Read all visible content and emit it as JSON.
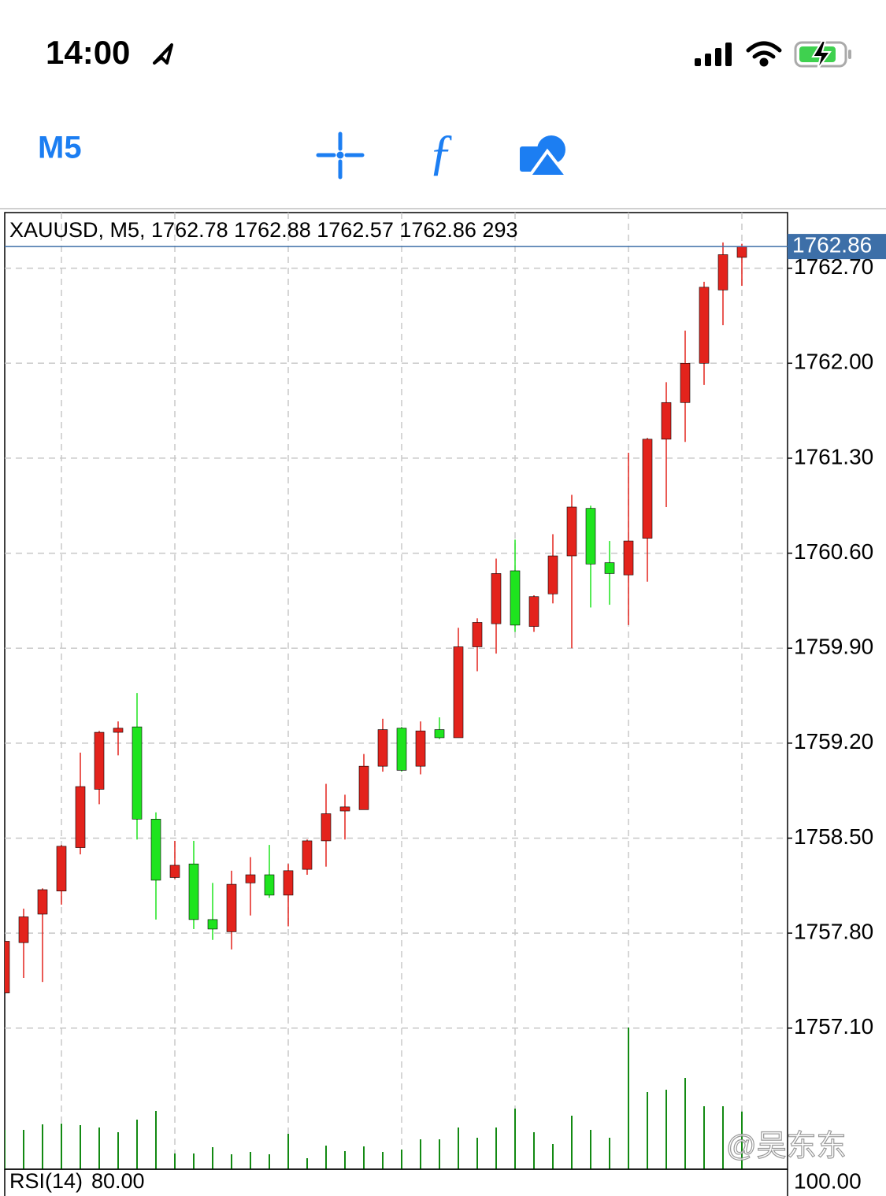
{
  "status_bar": {
    "time": "14:00"
  },
  "toolbar": {
    "timeframe": "M5"
  },
  "chart_data": {
    "type": "candlestick",
    "header": "XAUUSD, M5, 1762.78 1762.88 1762.57 1762.86 293",
    "open": [
      1757.36,
      1757.73,
      1757.94,
      1758.11,
      1758.43,
      1758.86,
      1759.28,
      1759.32,
      1758.64,
      1758.21,
      1758.31,
      1757.9,
      1757.81,
      1758.17,
      1758.23,
      1758.08,
      1758.27,
      1758.48,
      1758.7,
      1758.71,
      1759.03,
      1759.31,
      1759.03,
      1759.3,
      1759.24,
      1759.91,
      1760.08,
      1760.47,
      1760.06,
      1760.3,
      1760.58,
      1760.93,
      1760.53,
      1760.44,
      1760.71,
      1761.44,
      1761.71,
      1762.0,
      1762.54,
      1762.78
    ],
    "high": [
      1757.74,
      1757.98,
      1758.13,
      1758.45,
      1759.13,
      1759.29,
      1759.36,
      1759.57,
      1758.69,
      1758.48,
      1758.48,
      1758.17,
      1758.26,
      1758.36,
      1758.45,
      1758.31,
      1758.49,
      1758.9,
      1758.82,
      1759.12,
      1759.38,
      1759.32,
      1759.36,
      1759.39,
      1760.05,
      1760.12,
      1760.56,
      1760.7,
      1760.29,
      1760.74,
      1761.03,
      1760.95,
      1760.69,
      1761.34,
      1761.45,
      1761.86,
      1762.24,
      1762.6,
      1762.89,
      1762.88
    ],
    "low": [
      1757.36,
      1757.47,
      1757.44,
      1758.01,
      1758.38,
      1758.75,
      1759.11,
      1758.49,
      1757.9,
      1758.2,
      1757.83,
      1757.75,
      1757.68,
      1757.93,
      1758.06,
      1757.85,
      1758.23,
      1758.29,
      1758.49,
      1758.71,
      1758.99,
      1758.99,
      1758.97,
      1759.23,
      1759.24,
      1759.73,
      1759.86,
      1760.02,
      1760.02,
      1760.23,
      1759.9,
      1760.2,
      1760.22,
      1760.07,
      1760.39,
      1760.94,
      1761.42,
      1761.84,
      1762.28,
      1762.57
    ],
    "close": [
      1757.74,
      1757.92,
      1758.12,
      1758.44,
      1758.88,
      1759.28,
      1759.31,
      1758.64,
      1758.19,
      1758.3,
      1757.9,
      1757.83,
      1758.16,
      1758.23,
      1758.08,
      1758.26,
      1758.48,
      1758.68,
      1758.73,
      1759.03,
      1759.3,
      1759.0,
      1759.29,
      1759.24,
      1759.91,
      1760.09,
      1760.45,
      1760.07,
      1760.28,
      1760.58,
      1760.94,
      1760.52,
      1760.45,
      1760.69,
      1761.44,
      1761.71,
      1762.0,
      1762.56,
      1762.8,
      1762.86
    ],
    "volume": [
      200,
      200,
      228,
      232,
      224,
      212,
      188,
      252,
      296,
      80,
      80,
      112,
      76,
      88,
      76,
      180,
      56,
      120,
      92,
      116,
      88,
      100,
      152,
      152,
      212,
      160,
      212,
      308,
      188,
      128,
      272,
      200,
      160,
      720,
      392,
      404,
      464,
      320,
      320,
      293
    ],
    "ylim": [
      1756.06,
      1763.11
    ],
    "volume_ylim": [
      0,
      4860
    ],
    "yticks": [
      {
        "value": 1757.1,
        "label": "1757.10"
      },
      {
        "value": 1757.8,
        "label": "1757.80"
      },
      {
        "value": 1758.5,
        "label": "1758.50"
      },
      {
        "value": 1759.2,
        "label": "1759.20"
      },
      {
        "value": 1759.9,
        "label": "1759.90"
      },
      {
        "value": 1760.6,
        "label": "1760.60"
      },
      {
        "value": 1761.3,
        "label": "1761.30"
      },
      {
        "value": 1762,
        "label": "1762.00"
      },
      {
        "value": 1762.7,
        "label": "1762.70"
      }
    ],
    "current_price": 1762.86,
    "up_color": "#e3231c",
    "down_color": "#1ee41e",
    "volume_color": "#138a13",
    "price_line_color": "#3d6fa8",
    "grid": true,
    "indicator": {
      "name": "RSI(14)",
      "value": {
        "value": 80,
        "label": "80.00"
      },
      "ytick": {
        "value": 100,
        "label": "100.00"
      }
    }
  },
  "watermark": "@吴东东"
}
